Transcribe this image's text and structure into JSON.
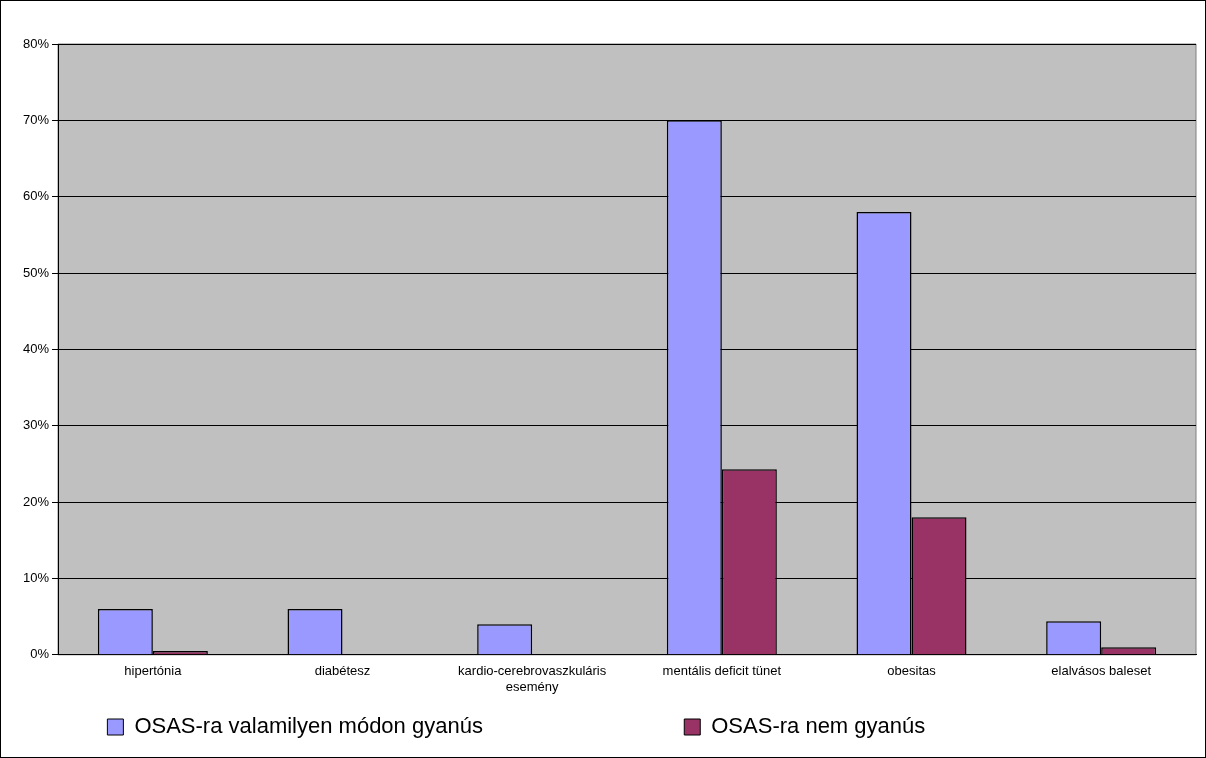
{
  "chart_data": {
    "type": "bar",
    "categories": [
      "hipertónia",
      "diabétesz",
      "kardio-cerebrovaszkuláris esemény",
      "mentális deficit tünet",
      "obesitas",
      "elalvásos baleset"
    ],
    "series": [
      {
        "name": "OSAS-ra valamilyen módon gyanús",
        "color": "#9999ff",
        "values": [
          6,
          6,
          4,
          70,
          58,
          4.4
        ]
      },
      {
        "name": "OSAS-ra nem gyanús",
        "color": "#993366",
        "values": [
          0.5,
          0,
          0,
          24.3,
          18,
          1
        ]
      }
    ],
    "ylim": [
      0,
      80
    ],
    "yticks": [
      {
        "value": 0,
        "label": "0%"
      },
      {
        "value": 10,
        "label": "10%"
      },
      {
        "value": 20,
        "label": "20%"
      },
      {
        "value": 30,
        "label": "30%"
      },
      {
        "value": 40,
        "label": "40%"
      },
      {
        "value": 50,
        "label": "50%"
      },
      {
        "value": 60,
        "label": "60%"
      },
      {
        "value": 70,
        "label": "70%"
      },
      {
        "value": 80,
        "label": "80%"
      }
    ],
    "grid": "y",
    "legend": "bottom"
  }
}
